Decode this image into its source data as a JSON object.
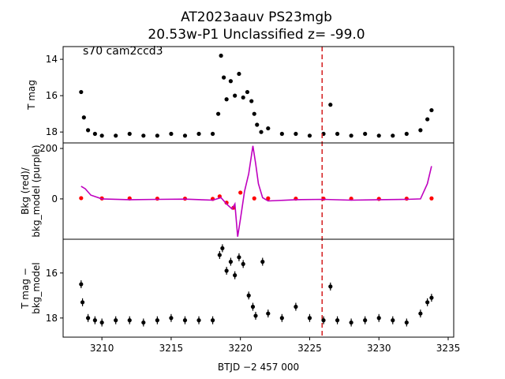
{
  "title": {
    "line1": "AT2023aauv  PS23mgb",
    "line2": "20.53w-P1 Unclassified z= -99.0"
  },
  "annotation": "s70 cam2ccd3",
  "colors": {
    "points": "#000000",
    "bkg_red": "#ff0000",
    "bkg_model_purple": "#bf00bf",
    "marker_line": "#d62728"
  },
  "chart_data": [
    {
      "type": "scatter",
      "panel": "top",
      "xlabel": "",
      "ylabel": "T mag",
      "xlim": [
        3207.2,
        3235.4
      ],
      "ylim": [
        18.6,
        13.3
      ],
      "yticks": [
        14,
        16,
        18
      ],
      "inverted_y": true,
      "vline_x": 3225.9,
      "series": [
        {
          "x": [
            3208.5,
            3208.7,
            3209.0,
            3209.5,
            3210.0,
            3211.0,
            3212.0,
            3213.0,
            3214.0,
            3215.0,
            3216.0,
            3217.0,
            3218.0,
            3218.4,
            3218.6,
            3218.8,
            3219.0,
            3219.3,
            3219.6,
            3219.9,
            3220.2,
            3220.5,
            3220.8,
            3221.0,
            3221.2,
            3221.5,
            3222.0,
            3223.0,
            3224.0,
            3225.0,
            3226.0,
            3226.5,
            3227.0,
            3228.0,
            3229.0,
            3230.0,
            3231.0,
            3232.0,
            3233.0,
            3233.5,
            3233.8
          ],
          "y": [
            15.8,
            17.2,
            17.9,
            18.1,
            18.2,
            18.2,
            18.1,
            18.2,
            18.2,
            18.1,
            18.2,
            18.1,
            18.1,
            17.0,
            13.8,
            15.0,
            16.2,
            15.2,
            16.0,
            14.8,
            16.1,
            15.8,
            16.3,
            17.0,
            17.6,
            18.0,
            17.8,
            18.1,
            18.1,
            18.2,
            18.1,
            16.5,
            18.1,
            18.2,
            18.1,
            18.2,
            18.2,
            18.1,
            17.9,
            17.3,
            16.8
          ]
        }
      ]
    },
    {
      "type": "line",
      "panel": "middle",
      "xlabel": "",
      "ylabel": "Bkg (red)/\nbkg_model (purple)",
      "xlim": [
        3207.2,
        3235.4
      ],
      "ylim": [
        -160,
        222
      ],
      "yticks": [
        0,
        200
      ],
      "series": [
        {
          "name": "Bkg",
          "x": [
            3208.5,
            3210.0,
            3212.0,
            3214.0,
            3216.0,
            3218.0,
            3218.5,
            3219.0,
            3219.5,
            3220.0,
            3221.0,
            3222.0,
            3224.0,
            3226.0,
            3228.0,
            3230.0,
            3232.0,
            3233.8
          ],
          "y": [
            3,
            2,
            2,
            1,
            1,
            0,
            10,
            -15,
            -35,
            25,
            2,
            2,
            1,
            1,
            1,
            0,
            1,
            2
          ]
        },
        {
          "name": "bkg_model",
          "x": [
            3208.5,
            3208.8,
            3209.2,
            3210.0,
            3212.0,
            3214.0,
            3216.0,
            3218.0,
            3218.6,
            3219.0,
            3219.4,
            3219.6,
            3219.8,
            3220.0,
            3220.3,
            3220.6,
            3220.9,
            3221.1,
            3221.3,
            3221.6,
            3222.0,
            3224.0,
            3226.0,
            3228.0,
            3230.0,
            3232.0,
            3233.0,
            3233.5,
            3233.8
          ],
          "y": [
            50,
            40,
            15,
            0,
            -3,
            -2,
            -1,
            -5,
            5,
            -20,
            -40,
            -20,
            -150,
            -80,
            30,
            100,
            210,
            140,
            60,
            5,
            -8,
            -3,
            -2,
            -5,
            -3,
            -2,
            0,
            60,
            130
          ]
        }
      ]
    },
    {
      "type": "scatter",
      "panel": "bottom",
      "xlabel": "BTJD −2 457 000",
      "ylabel": "T mag −\nbkg_model",
      "xlim": [
        3207.2,
        3235.4
      ],
      "ylim": [
        18.85,
        14.5
      ],
      "xticks": [
        3210,
        3215,
        3220,
        3225,
        3230,
        3235
      ],
      "yticks": [
        16,
        18
      ],
      "inverted_y": true,
      "series": [
        {
          "x": [
            3208.5,
            3208.6,
            3209.0,
            3209.5,
            3210.0,
            3211.0,
            3212.0,
            3213.0,
            3214.0,
            3215.0,
            3216.0,
            3217.0,
            3218.0,
            3218.5,
            3218.7,
            3219.0,
            3219.3,
            3219.6,
            3219.9,
            3220.2,
            3220.6,
            3220.9,
            3221.1,
            3221.6,
            3222.0,
            3223.0,
            3224.0,
            3225.0,
            3226.0,
            3226.5,
            3227.0,
            3228.0,
            3229.0,
            3230.0,
            3231.0,
            3232.0,
            3233.0,
            3233.5,
            3233.8
          ],
          "y": [
            16.5,
            17.3,
            18.0,
            18.1,
            18.2,
            18.1,
            18.1,
            18.2,
            18.1,
            18.0,
            18.1,
            18.1,
            18.1,
            15.2,
            14.9,
            15.9,
            15.5,
            16.1,
            15.3,
            15.6,
            17.0,
            17.5,
            17.9,
            15.5,
            17.8,
            18.0,
            17.5,
            18.0,
            18.1,
            16.6,
            18.1,
            18.2,
            18.1,
            18.0,
            18.1,
            18.2,
            17.8,
            17.3,
            17.1
          ]
        }
      ]
    }
  ]
}
